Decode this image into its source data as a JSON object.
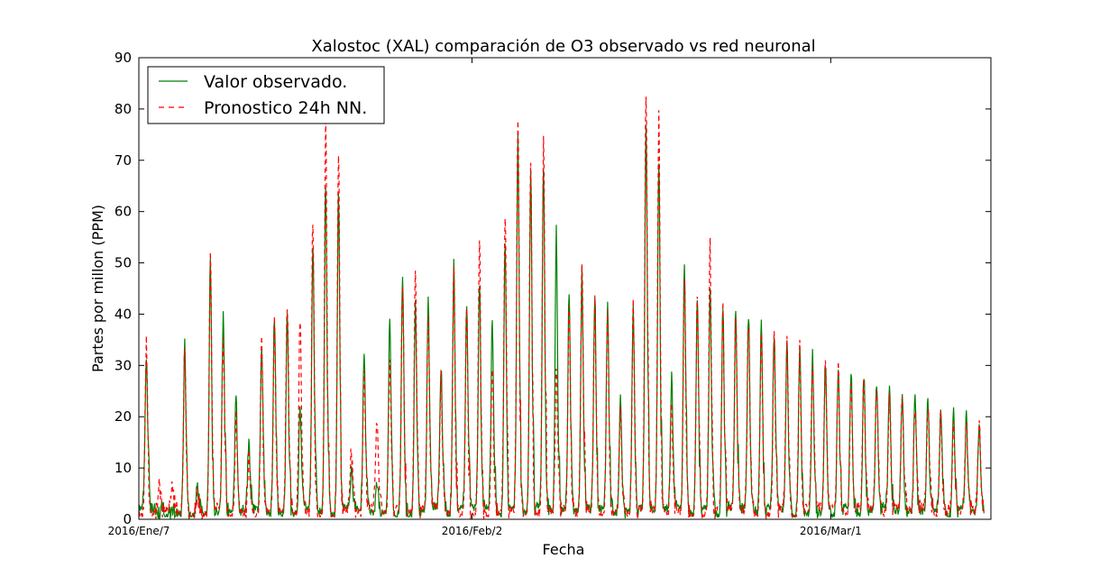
{
  "chart_data": {
    "type": "line",
    "title": "Xalostoc (XAL) comparación de O3 observado vs red neuronal",
    "xlabel": "Fecha",
    "ylabel": "Partes por millon (PPM)",
    "ylim": [
      0,
      90
    ],
    "yticks": [
      0,
      10,
      20,
      30,
      40,
      50,
      60,
      70,
      80,
      90
    ],
    "xlim_days": [
      0,
      66.5
    ],
    "xticks": [
      {
        "label": "2016/Ene/7",
        "day": 0
      },
      {
        "label": "2016/Feb/2",
        "day": 26
      },
      {
        "label": "2016/Mar/1",
        "day": 54
      }
    ],
    "grid": false,
    "legend_position": "upper-left",
    "series": [
      {
        "name": "Valor observado.",
        "color": "#008000",
        "style": "solid",
        "daily_peaks": [
          32,
          1,
          2,
          34,
          7,
          51,
          40,
          24,
          15,
          33,
          40,
          40,
          21,
          54,
          66,
          64,
          9,
          33,
          7,
          39,
          48,
          42,
          42,
          30,
          50,
          42,
          47,
          39,
          53,
          74,
          67,
          69,
          56,
          45,
          48,
          44,
          43,
          23,
          41,
          77,
          70,
          28,
          49,
          44,
          46,
          42,
          41,
          40,
          38,
          36,
          34,
          33,
          32,
          31,
          30,
          29,
          28,
          27,
          26,
          25,
          24,
          23,
          22,
          21,
          20,
          19
        ]
      },
      {
        "name": "Pronostico 24h NN.",
        "color": "#ff0000",
        "style": "dashed",
        "daily_peaks": [
          34,
          7,
          7,
          33,
          5,
          51,
          37,
          20,
          13,
          35,
          38,
          42,
          39,
          59,
          77,
          72,
          13,
          27,
          19,
          32,
          46,
          47,
          40,
          28,
          48,
          43,
          55,
          30,
          60,
          79,
          70,
          73,
          30,
          43,
          50,
          42,
          40,
          21,
          41,
          84,
          78,
          22,
          47,
          45,
          53,
          41,
          40,
          39,
          37,
          36,
          34,
          33,
          31,
          30,
          29,
          28,
          27,
          26,
          25,
          24,
          23,
          22,
          21,
          20,
          19,
          18
        ]
      }
    ]
  }
}
